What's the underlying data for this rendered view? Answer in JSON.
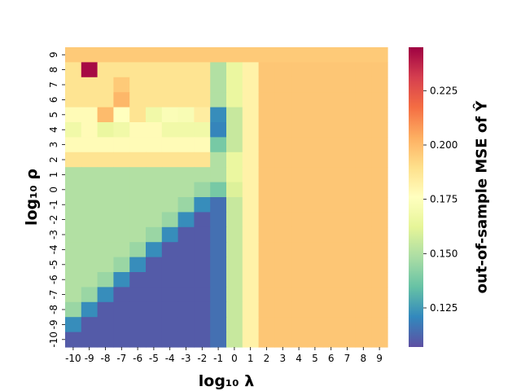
{
  "chart_data": {
    "type": "heatmap",
    "xlabel": "log₁₀ λ",
    "ylabel": "log₁₀ ρ",
    "colorbar_label": "out-of-sample MSE of Ŷ",
    "colormap": "Spectral_r",
    "colorbar_range": [
      0.107,
      0.245
    ],
    "colorbar_ticks": [
      "0.125",
      "0.150",
      "0.175",
      "0.200",
      "0.225"
    ],
    "x": [
      "-10",
      "-9",
      "-8",
      "-7",
      "-6",
      "-5",
      "-4",
      "-3",
      "-2",
      "-1",
      "0",
      "1",
      "2",
      "3",
      "4",
      "5",
      "6",
      "7",
      "8",
      "9"
    ],
    "y": [
      "9",
      "8",
      "7",
      "6",
      "5",
      "4",
      "3",
      "2",
      "1",
      "0",
      "-1",
      "-2",
      "-3",
      "-4",
      "-5",
      "-6",
      "-7",
      "-8",
      "-9",
      "-10"
    ],
    "values": [
      [
        0.196,
        0.196,
        0.196,
        0.196,
        0.196,
        0.196,
        0.196,
        0.196,
        0.196,
        0.196,
        0.196,
        0.196,
        0.196,
        0.196,
        0.196,
        0.196,
        0.196,
        0.196,
        0.196,
        0.196
      ],
      [
        0.188,
        0.243,
        0.188,
        0.188,
        0.188,
        0.188,
        0.188,
        0.188,
        0.188,
        0.15,
        0.165,
        0.182,
        0.197,
        0.197,
        0.197,
        0.197,
        0.197,
        0.197,
        0.197,
        0.197
      ],
      [
        0.188,
        0.188,
        0.188,
        0.196,
        0.188,
        0.188,
        0.188,
        0.188,
        0.188,
        0.15,
        0.165,
        0.182,
        0.197,
        0.197,
        0.197,
        0.197,
        0.197,
        0.197,
        0.197,
        0.197
      ],
      [
        0.188,
        0.188,
        0.188,
        0.201,
        0.188,
        0.188,
        0.188,
        0.188,
        0.188,
        0.15,
        0.165,
        0.182,
        0.197,
        0.197,
        0.197,
        0.197,
        0.197,
        0.197,
        0.197,
        0.197
      ],
      [
        0.178,
        0.178,
        0.2,
        0.176,
        0.188,
        0.168,
        0.173,
        0.172,
        0.184,
        0.122,
        0.155,
        0.182,
        0.197,
        0.197,
        0.197,
        0.197,
        0.197,
        0.197,
        0.197,
        0.197
      ],
      [
        0.168,
        0.178,
        0.165,
        0.168,
        0.178,
        0.178,
        0.168,
        0.168,
        0.168,
        0.12,
        0.155,
        0.182,
        0.197,
        0.197,
        0.197,
        0.197,
        0.197,
        0.197,
        0.197,
        0.197
      ],
      [
        0.178,
        0.178,
        0.178,
        0.178,
        0.178,
        0.178,
        0.178,
        0.178,
        0.178,
        0.138,
        0.155,
        0.182,
        0.197,
        0.197,
        0.197,
        0.197,
        0.197,
        0.197,
        0.197,
        0.197
      ],
      [
        0.188,
        0.188,
        0.188,
        0.188,
        0.188,
        0.188,
        0.188,
        0.188,
        0.188,
        0.15,
        0.165,
        0.182,
        0.197,
        0.197,
        0.197,
        0.197,
        0.197,
        0.197,
        0.197,
        0.197
      ],
      [
        0.15,
        0.15,
        0.15,
        0.15,
        0.15,
        0.15,
        0.15,
        0.15,
        0.15,
        0.15,
        0.165,
        0.182,
        0.197,
        0.197,
        0.197,
        0.197,
        0.197,
        0.197,
        0.197,
        0.197
      ],
      [
        0.15,
        0.15,
        0.15,
        0.15,
        0.15,
        0.15,
        0.15,
        0.15,
        0.145,
        0.138,
        0.16,
        0.182,
        0.197,
        0.197,
        0.197,
        0.197,
        0.197,
        0.197,
        0.197,
        0.197
      ],
      [
        0.15,
        0.15,
        0.15,
        0.15,
        0.15,
        0.15,
        0.15,
        0.145,
        0.122,
        0.115,
        0.155,
        0.182,
        0.197,
        0.197,
        0.197,
        0.197,
        0.197,
        0.197,
        0.197,
        0.197
      ],
      [
        0.15,
        0.15,
        0.15,
        0.15,
        0.15,
        0.15,
        0.145,
        0.122,
        0.11,
        0.115,
        0.155,
        0.182,
        0.197,
        0.197,
        0.197,
        0.197,
        0.197,
        0.197,
        0.197,
        0.197
      ],
      [
        0.15,
        0.15,
        0.15,
        0.15,
        0.15,
        0.145,
        0.122,
        0.11,
        0.11,
        0.115,
        0.155,
        0.182,
        0.197,
        0.197,
        0.197,
        0.197,
        0.197,
        0.197,
        0.197,
        0.197
      ],
      [
        0.15,
        0.15,
        0.15,
        0.15,
        0.145,
        0.122,
        0.11,
        0.11,
        0.11,
        0.115,
        0.155,
        0.182,
        0.197,
        0.197,
        0.197,
        0.197,
        0.197,
        0.197,
        0.197,
        0.197
      ],
      [
        0.15,
        0.15,
        0.15,
        0.145,
        0.122,
        0.11,
        0.11,
        0.11,
        0.11,
        0.115,
        0.155,
        0.182,
        0.197,
        0.197,
        0.197,
        0.197,
        0.197,
        0.197,
        0.197,
        0.197
      ],
      [
        0.15,
        0.15,
        0.145,
        0.122,
        0.11,
        0.11,
        0.11,
        0.11,
        0.11,
        0.115,
        0.155,
        0.182,
        0.197,
        0.197,
        0.197,
        0.197,
        0.197,
        0.197,
        0.197,
        0.197
      ],
      [
        0.15,
        0.145,
        0.122,
        0.11,
        0.11,
        0.11,
        0.11,
        0.11,
        0.11,
        0.115,
        0.155,
        0.182,
        0.197,
        0.197,
        0.197,
        0.197,
        0.197,
        0.197,
        0.197,
        0.197
      ],
      [
        0.145,
        0.122,
        0.11,
        0.11,
        0.11,
        0.11,
        0.11,
        0.11,
        0.11,
        0.115,
        0.155,
        0.182,
        0.197,
        0.197,
        0.197,
        0.197,
        0.197,
        0.197,
        0.197,
        0.197
      ],
      [
        0.122,
        0.11,
        0.11,
        0.11,
        0.11,
        0.11,
        0.11,
        0.11,
        0.11,
        0.115,
        0.155,
        0.182,
        0.197,
        0.197,
        0.197,
        0.197,
        0.197,
        0.197,
        0.197,
        0.197
      ],
      [
        0.11,
        0.11,
        0.11,
        0.11,
        0.11,
        0.11,
        0.11,
        0.11,
        0.11,
        0.115,
        0.155,
        0.182,
        0.197,
        0.197,
        0.197,
        0.197,
        0.197,
        0.197,
        0.197,
        0.197
      ]
    ]
  }
}
